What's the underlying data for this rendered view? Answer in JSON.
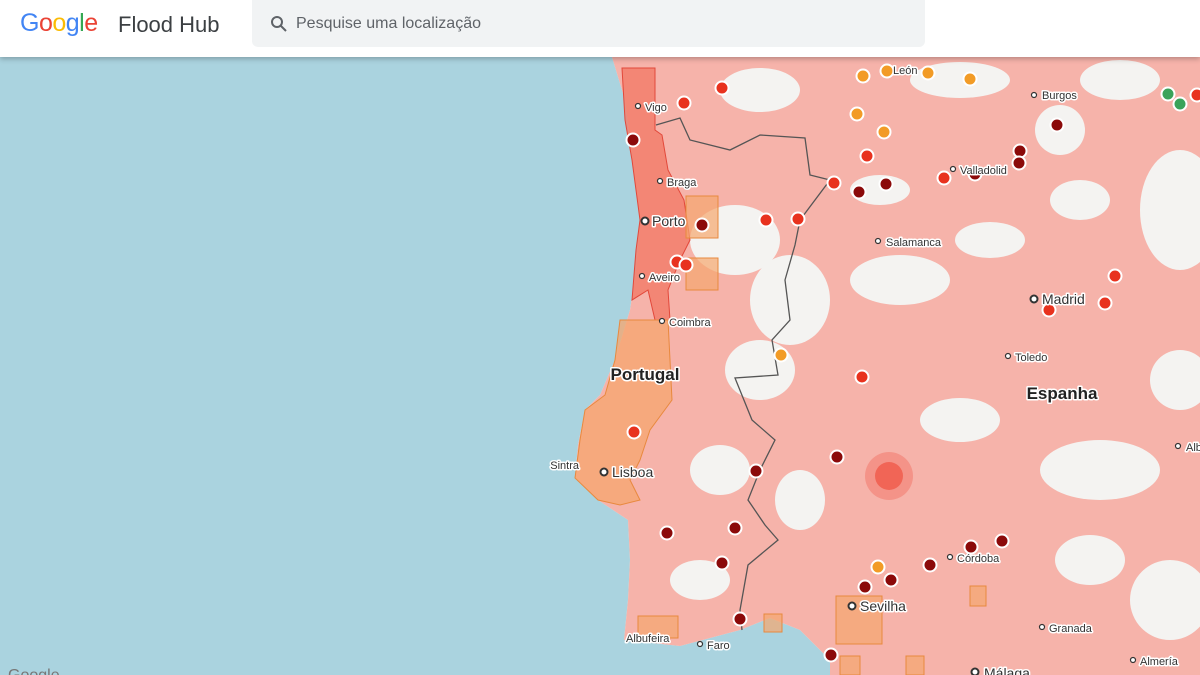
{
  "header": {
    "logo": "Google",
    "title": "Flood Hub",
    "search_placeholder": "Pesquise uma localização"
  },
  "map": {
    "places": [
      {
        "name": "León"
      },
      {
        "name": "Burgos"
      },
      {
        "name": "Vigo"
      },
      {
        "name": "Braga"
      },
      {
        "name": "Valladolid"
      },
      {
        "name": "Porto"
      },
      {
        "name": "Salamanca"
      },
      {
        "name": "Aveiro"
      },
      {
        "name": "Madrid"
      },
      {
        "name": "Coimbra"
      },
      {
        "name": "Toledo"
      },
      {
        "name": "Alb"
      },
      {
        "name": "Sintra"
      },
      {
        "name": "Lisboa"
      },
      {
        "name": "Córdoba"
      },
      {
        "name": "Sevilha"
      },
      {
        "name": "Granada"
      },
      {
        "name": "Albufeira"
      },
      {
        "name": "Faro"
      },
      {
        "name": "Málaga"
      },
      {
        "name": "Almería"
      }
    ],
    "countries": [
      {
        "name": "Portugal"
      },
      {
        "name": "Espanha"
      }
    ],
    "attribution": "Google"
  }
}
